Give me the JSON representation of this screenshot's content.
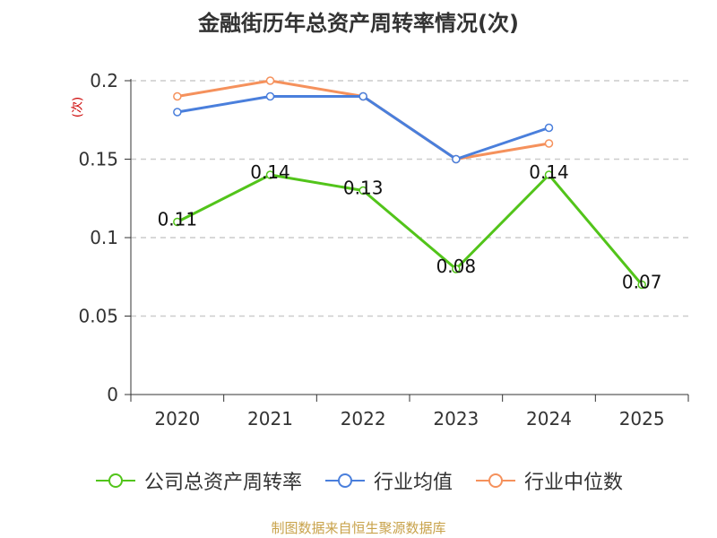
{
  "chart_data": {
    "type": "line",
    "title": "金融街历年总资产周转率情况(次)",
    "ylabel": "(次)",
    "xlabel": "",
    "categories": [
      "2020",
      "2021",
      "2022",
      "2023",
      "2024",
      "2025"
    ],
    "ylim": [
      0,
      0.2
    ],
    "yticks": [
      0,
      0.05,
      0.1,
      0.15,
      0.2
    ],
    "ytick_labels": [
      "0",
      "0.05",
      "0.1",
      "0.15",
      "0.2"
    ],
    "grid": true,
    "legend_position": "bottom",
    "series": [
      {
        "name": "公司总资产周转率",
        "color": "#52c41a",
        "values": [
          0.11,
          0.14,
          0.13,
          0.08,
          0.14,
          0.07
        ],
        "labels": [
          "0.11",
          "0.14",
          "0.13",
          "0.08",
          "0.14",
          "0.07"
        ],
        "show_labels": true
      },
      {
        "name": "行业均值",
        "color": "#4a7fdc",
        "values": [
          0.18,
          0.19,
          0.19,
          0.15,
          0.17,
          null
        ],
        "show_labels": false
      },
      {
        "name": "行业中位数",
        "color": "#f5915c",
        "values": [
          0.19,
          0.2,
          0.19,
          0.15,
          0.16,
          null
        ],
        "show_labels": false
      }
    ]
  },
  "source": "制图数据来自恒生聚源数据库"
}
